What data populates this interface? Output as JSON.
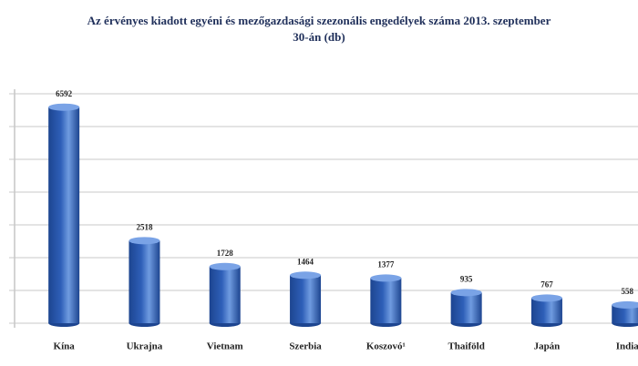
{
  "chart_data": {
    "type": "bar",
    "title": "Az érvényes kiadott egyéni és mezőgazdasági szezonális engedélyek száma 2013. szeptember 30-án (db)",
    "categories": [
      "Kína",
      "Ukrajna",
      "Vietnam",
      "Szerbia",
      "Koszovó¹",
      "Thaiföld",
      "Japán",
      "India"
    ],
    "values": [
      6592,
      2518,
      1728,
      1464,
      1377,
      935,
      767,
      558
    ],
    "color": "#2e5fb8",
    "ylim": [
      0,
      7000
    ],
    "yticks": [
      0,
      1000,
      2000,
      3000,
      4000,
      5000,
      6000,
      7000
    ],
    "grid": true
  }
}
